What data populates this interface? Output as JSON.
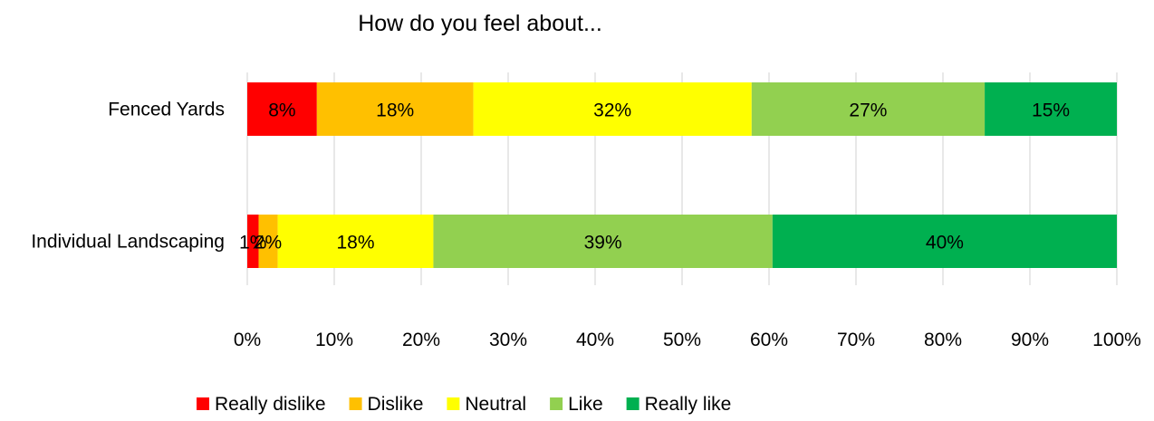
{
  "chart_data": {
    "type": "bar",
    "orientation": "horizontal",
    "stacked": true,
    "percent": true,
    "title": "How do you feel about...",
    "categories": [
      "Fenced Yards",
      "Individual Landscaping"
    ],
    "series": [
      {
        "name": "Really dislike",
        "color": "#ff0000",
        "values": [
          8,
          1.3
        ],
        "labels": [
          "8%",
          "1%"
        ]
      },
      {
        "name": "Dislike",
        "color": "#ffc000",
        "values": [
          18,
          2.2
        ],
        "labels": [
          "18%",
          "2%"
        ]
      },
      {
        "name": "Neutral",
        "color": "#ffff00",
        "values": [
          32,
          17.9
        ],
        "labels": [
          "32%",
          "18%"
        ]
      },
      {
        "name": "Like",
        "color": "#92d050",
        "values": [
          26.8,
          39
        ],
        "labels": [
          "27%",
          "39%"
        ]
      },
      {
        "name": "Really like",
        "color": "#00b050",
        "values": [
          15.2,
          39.6
        ],
        "labels": [
          "15%",
          "40%"
        ]
      }
    ],
    "xlim": [
      0,
      100
    ],
    "xticks": [
      "0%",
      "10%",
      "20%",
      "30%",
      "40%",
      "50%",
      "60%",
      "70%",
      "80%",
      "90%",
      "100%"
    ],
    "grid": "vertical",
    "legend": "bottom"
  }
}
